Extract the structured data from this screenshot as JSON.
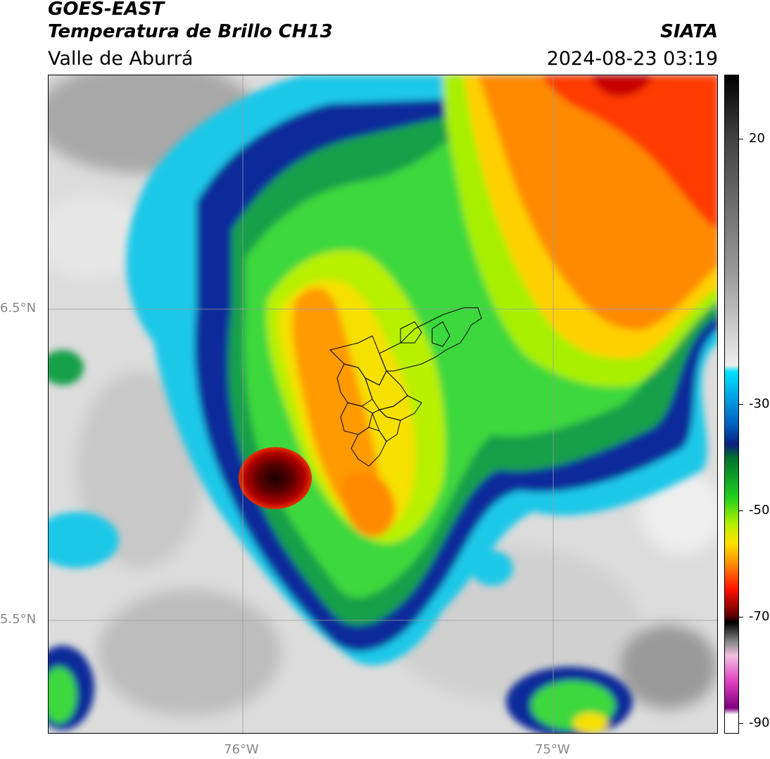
{
  "header": {
    "satellite": "GOES-EAST",
    "product": "Temperatura de Brillo CH13",
    "region": "Valle de Aburrá",
    "institution": "SIATA",
    "datetime": "2024-08-23 03:19"
  },
  "map": {
    "lat_ticks": [
      {
        "label": "6.5°N",
        "lat": 6.5
      },
      {
        "label": "5.5°N",
        "lat": 5.5
      }
    ],
    "lon_ticks": [
      {
        "label": "76°W",
        "lon": -76.0
      },
      {
        "label": "75°W",
        "lon": -75.0
      }
    ],
    "extent": {
      "lon_min": -76.62,
      "lon_max": -74.47,
      "lat_min": 5.13,
      "lat_max": 7.25
    },
    "colorbar_ticks": [
      {
        "label": "20",
        "value": 20
      },
      {
        "label": "-30",
        "value": -30
      },
      {
        "label": "-50",
        "value": -50
      },
      {
        "label": "-70",
        "value": -70
      },
      {
        "label": "-90",
        "value": -90
      }
    ],
    "colorbar_range": [
      -92,
      32
    ]
  }
}
